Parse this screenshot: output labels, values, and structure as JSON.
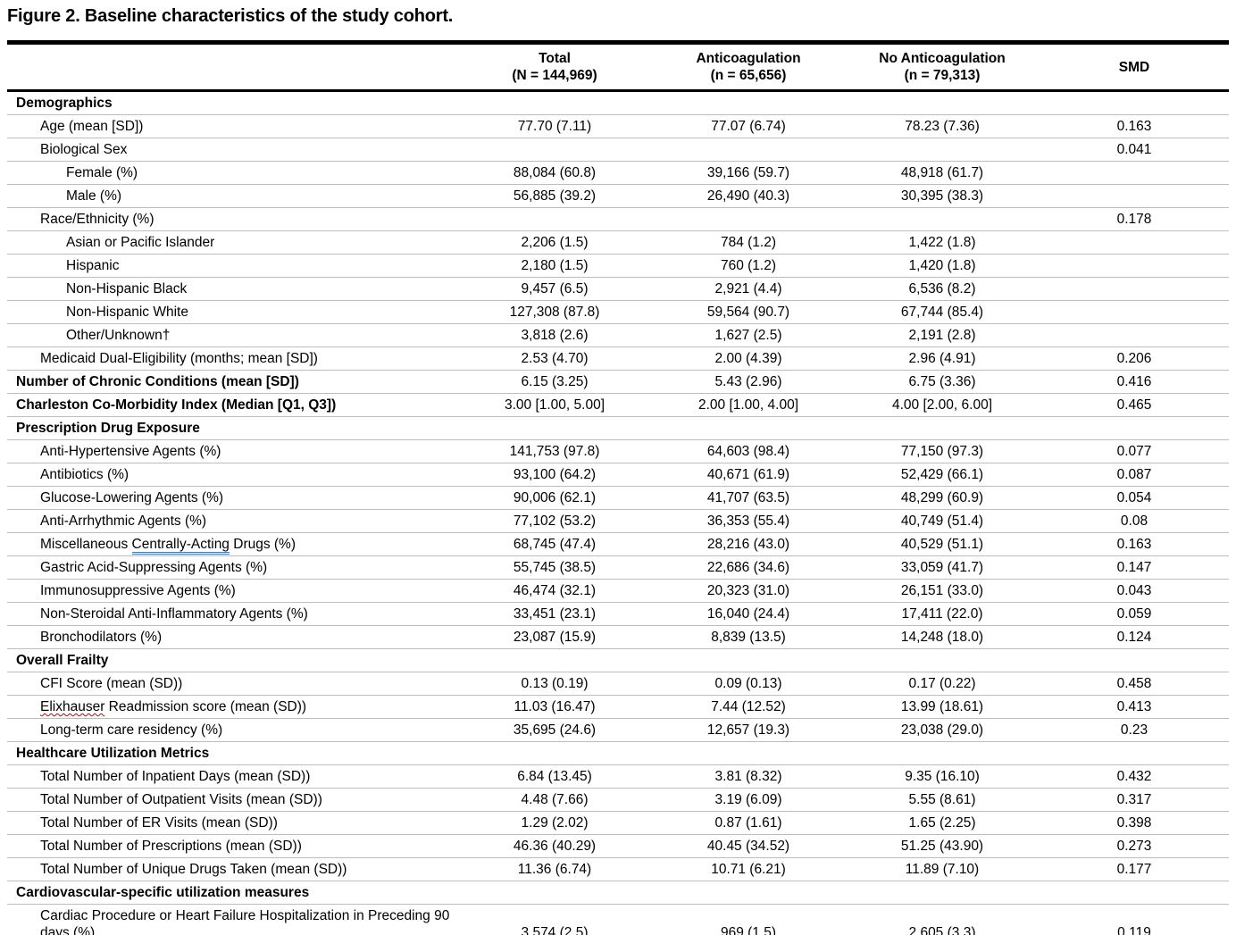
{
  "title": "Figure 2. Baseline characteristics of the study cohort.",
  "annotation_colors": {
    "spellcheck_underline": "#c00000",
    "grammar_underline": "#4472c4",
    "row_divider": "#bdbdbd",
    "table_rule": "#000000"
  },
  "table": {
    "columns": [
      {
        "key": "total",
        "line1": "Total",
        "line2": "(N = 144,969)"
      },
      {
        "key": "anticoagulation",
        "line1": "Anticoagulation",
        "line2": "(n = 65,656)"
      },
      {
        "key": "no_anticoagulation",
        "line1": "No Anticoagulation",
        "line2": "(n = 79,313)"
      },
      {
        "key": "smd",
        "line1": "SMD",
        "line2": ""
      }
    ],
    "rows": [
      {
        "label": "Demographics",
        "style": "section",
        "values": [
          "",
          "",
          "",
          ""
        ]
      },
      {
        "label": "Age (mean [SD])",
        "style": "item",
        "values": [
          "77.70 (7.11)",
          "77.07 (6.74)",
          "78.23 (7.36)",
          "0.163"
        ]
      },
      {
        "label": "Biological Sex",
        "style": "item",
        "values": [
          "",
          "",
          "",
          "0.041"
        ]
      },
      {
        "label": "Female (%)",
        "style": "subitem",
        "values": [
          "88,084 (60.8)",
          "39,166 (59.7)",
          "48,918 (61.7)",
          ""
        ]
      },
      {
        "label": "Male (%)",
        "style": "subitem",
        "values": [
          "56,885 (39.2)",
          "26,490 (40.3)",
          "30,395 (38.3)",
          ""
        ]
      },
      {
        "label": "Race/Ethnicity (%)",
        "style": "item",
        "values": [
          "",
          "",
          "",
          "0.178"
        ]
      },
      {
        "label": "Asian or Pacific Islander",
        "style": "subitem",
        "values": [
          "2,206 (1.5)",
          "784 (1.2)",
          "1,422 (1.8)",
          ""
        ]
      },
      {
        "label": "Hispanic",
        "style": "subitem",
        "values": [
          "2,180 (1.5)",
          "760 (1.2)",
          "1,420 (1.8)",
          ""
        ]
      },
      {
        "label": "Non-Hispanic Black",
        "style": "subitem",
        "values": [
          "9,457 (6.5)",
          "2,921 (4.4)",
          "6,536 (8.2)",
          ""
        ]
      },
      {
        "label": "Non-Hispanic White",
        "style": "subitem",
        "values": [
          "127,308 (87.8)",
          "59,564 (90.7)",
          "67,744 (85.4)",
          ""
        ]
      },
      {
        "label": "Other/Unknown†",
        "style": "subitem",
        "values": [
          "3,818 (2.6)",
          "1,627 (2.5)",
          "2,191 (2.8)",
          ""
        ]
      },
      {
        "label": "Medicaid Dual-Eligibility (months; mean [SD])",
        "style": "item",
        "values": [
          "2.53 (4.70)",
          "2.00 (4.39)",
          "2.96 (4.91)",
          "0.206"
        ]
      },
      {
        "label": "Number of Chronic Conditions (mean [SD])",
        "style": "section",
        "values": [
          "6.15 (3.25)",
          "5.43 (2.96)",
          "6.75 (3.36)",
          "0.416"
        ]
      },
      {
        "label": "Charleston Co-Morbidity Index (Median [Q1, Q3])",
        "style": "section",
        "values": [
          "3.00 [1.00, 5.00]",
          "2.00 [1.00, 4.00]",
          "4.00 [2.00, 6.00]",
          "0.465"
        ]
      },
      {
        "label": "Prescription Drug Exposure",
        "style": "section",
        "values": [
          "",
          "",
          "",
          ""
        ]
      },
      {
        "label": "Anti-Hypertensive Agents (%)",
        "style": "item",
        "values": [
          "141,753 (97.8)",
          "64,603 (98.4)",
          "77,150 (97.3)",
          "0.077"
        ]
      },
      {
        "label": "Antibiotics (%)",
        "style": "item",
        "values": [
          "93,100 (64.2)",
          "40,671 (61.9)",
          "52,429 (66.1)",
          "0.087"
        ]
      },
      {
        "label": "Glucose-Lowering Agents (%)",
        "style": "item",
        "values": [
          "90,006 (62.1)",
          "41,707 (63.5)",
          "48,299 (60.9)",
          "0.054"
        ]
      },
      {
        "label": "Anti-Arrhythmic Agents (%)",
        "style": "item",
        "values": [
          "77,102 (53.2)",
          "36,353 (55.4)",
          "40,749 (51.4)",
          "0.08"
        ]
      },
      {
        "label": "Miscellaneous Centrally-Acting Drugs (%)",
        "style": "item",
        "underline_word": "Centrally-Acting",
        "underline_type": "grammar",
        "values": [
          "68,745 (47.4)",
          "28,216 (43.0)",
          "40,529 (51.1)",
          "0.163"
        ]
      },
      {
        "label": "Gastric Acid-Suppressing Agents (%)",
        "style": "item",
        "values": [
          "55,745 (38.5)",
          "22,686 (34.6)",
          "33,059 (41.7)",
          "0.147"
        ]
      },
      {
        "label": "Immunosuppressive Agents (%)",
        "style": "item",
        "values": [
          "46,474 (32.1)",
          "20,323 (31.0)",
          "26,151 (33.0)",
          "0.043"
        ]
      },
      {
        "label": "Non-Steroidal Anti-Inflammatory Agents (%)",
        "style": "item",
        "values": [
          "33,451 (23.1)",
          "16,040 (24.4)",
          "17,411 (22.0)",
          "0.059"
        ]
      },
      {
        "label": "Bronchodilators (%)",
        "style": "item",
        "values": [
          "23,087 (15.9)",
          "8,839 (13.5)",
          "14,248 (18.0)",
          "0.124"
        ]
      },
      {
        "label": "Overall Frailty",
        "style": "section",
        "values": [
          "",
          "",
          "",
          ""
        ]
      },
      {
        "label": "CFI Score (mean (SD))",
        "style": "item",
        "values": [
          "0.13 (0.19)",
          "0.09 (0.13)",
          "0.17 (0.22)",
          "0.458"
        ]
      },
      {
        "label": "Elixhauser Readmission score (mean (SD))",
        "style": "item",
        "underline_word": "Elixhauser",
        "underline_type": "spelling",
        "values": [
          "11.03 (16.47)",
          "7.44 (12.52)",
          "13.99 (18.61)",
          "0.413"
        ]
      },
      {
        "label": "Long-term care residency (%)",
        "style": "item",
        "values": [
          "35,695 (24.6)",
          "12,657 (19.3)",
          "23,038 (29.0)",
          "0.23"
        ]
      },
      {
        "label": "Healthcare Utilization Metrics",
        "style": "section",
        "values": [
          "",
          "",
          "",
          ""
        ]
      },
      {
        "label": "Total Number of Inpatient Days (mean (SD))",
        "style": "item",
        "values": [
          "6.84 (13.45)",
          "3.81 (8.32)",
          "9.35 (16.10)",
          "0.432"
        ]
      },
      {
        "label": "Total Number of Outpatient Visits (mean (SD))",
        "style": "item",
        "values": [
          "4.48 (7.66)",
          "3.19 (6.09)",
          "5.55 (8.61)",
          "0.317"
        ]
      },
      {
        "label": "Total Number of ER Visits (mean (SD))",
        "style": "item",
        "values": [
          "1.29 (2.02)",
          "0.87 (1.61)",
          "1.65 (2.25)",
          "0.398"
        ]
      },
      {
        "label": "Total Number of Prescriptions (mean (SD))",
        "style": "item",
        "values": [
          "46.36 (40.29)",
          "40.45 (34.52)",
          "51.25 (43.90)",
          "0.273"
        ]
      },
      {
        "label": "Total Number of Unique Drugs Taken (mean (SD))",
        "style": "item",
        "values": [
          "11.36 (6.74)",
          "10.71 (6.21)",
          "11.89 (7.10)",
          "0.177"
        ]
      },
      {
        "label": "Cardiovascular-specific utilization measures",
        "style": "section",
        "values": [
          "",
          "",
          "",
          ""
        ]
      },
      {
        "label": "Cardiac Procedure or Heart Failure Hospitalization in Preceding 90 days (%)",
        "style": "item",
        "values": [
          "3,574 (2.5)",
          "969 (1.5)",
          "2,605 (3.3)",
          "0.119"
        ]
      }
    ]
  }
}
